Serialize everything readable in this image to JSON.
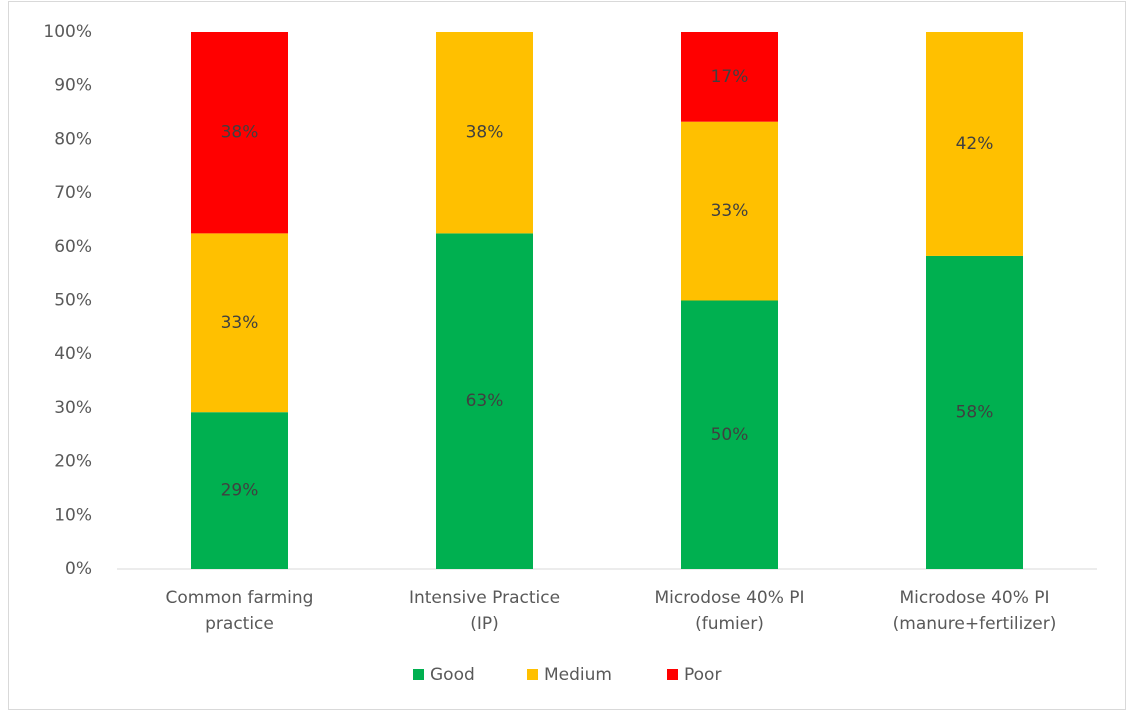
{
  "chart_data": {
    "type": "stacked_bar",
    "categories": [
      [
        "Common farming",
        "practice"
      ],
      [
        "Intensive Practice",
        "(IP)"
      ],
      [
        "Microdose 40% PI",
        "(fumier)"
      ],
      [
        "Microdose 40% PI",
        "(manure+fertilizer)"
      ]
    ],
    "series": [
      {
        "name": "Good",
        "color": "#00b050",
        "values": [
          29.2,
          62.5,
          50,
          58.3
        ],
        "value_labels": [
          "29%",
          "63%",
          "50%",
          "58%"
        ]
      },
      {
        "name": "Medium",
        "color": "#ffc000",
        "values": [
          33.3,
          37.5,
          33.3,
          41.7
        ],
        "value_labels": [
          "33%",
          "38%",
          "33%",
          "42%"
        ]
      },
      {
        "name": "Poor",
        "color": "#ff0000",
        "values": [
          37.5,
          null,
          16.7,
          null
        ],
        "value_labels": [
          "38%",
          null,
          "17%",
          null
        ]
      }
    ],
    "ylim": [
      0,
      100
    ],
    "yticks": [
      {
        "value": 0,
        "label": "0%"
      },
      {
        "value": 10,
        "label": "10%"
      },
      {
        "value": 20,
        "label": "20%"
      },
      {
        "value": 30,
        "label": "30%"
      },
      {
        "value": 40,
        "label": "40%"
      },
      {
        "value": 50,
        "label": "50%"
      },
      {
        "value": 60,
        "label": "60%"
      },
      {
        "value": 70,
        "label": "70%"
      },
      {
        "value": 80,
        "label": "80%"
      },
      {
        "value": 90,
        "label": "90%"
      },
      {
        "value": 100,
        "label": "100%"
      }
    ],
    "grid": false,
    "legend": "bottom"
  }
}
